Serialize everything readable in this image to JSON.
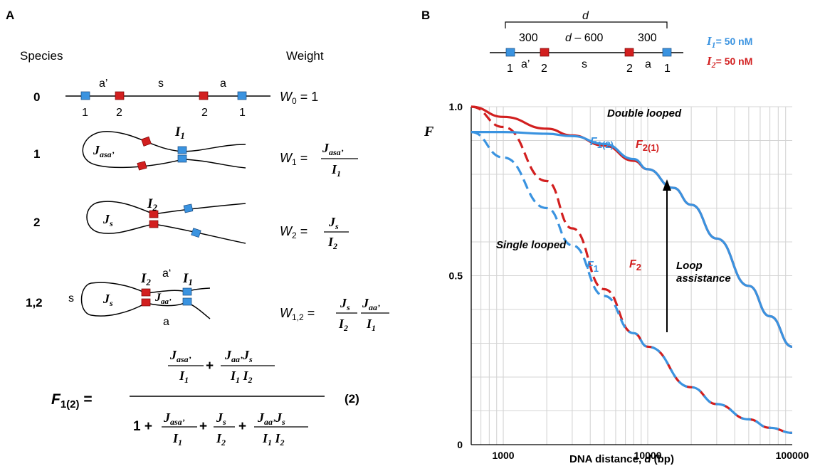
{
  "colors": {
    "blue": "#3a93e0",
    "red": "#d21f1f",
    "grid": "#d4d4d4",
    "black": "#000000"
  },
  "panelA": {
    "label": "A",
    "species_header": "Species",
    "weight_header": "Weight",
    "rows": [
      {
        "species": "0",
        "weight": "W0 = 1"
      },
      {
        "species": "1",
        "weight": "W1 = Jasa' / I1"
      },
      {
        "species": "2",
        "weight": "W2 = Js / I2"
      },
      {
        "species": "1,2",
        "weight": "W1,2 = Js/I2 · Jaa'/I1"
      }
    ],
    "segment_labels": {
      "a_prime": "a’",
      "s": "s",
      "a": "a",
      "a_prime_loop": "a‘",
      "a_lower": "a",
      "s_loop": "s"
    },
    "site_numbers": [
      "1",
      "2",
      "2",
      "1"
    ],
    "equation_number": "(2)"
  },
  "panelB": {
    "label": "B",
    "schematic": {
      "d_label": "d",
      "left_gap": "300",
      "middle": "d – 600",
      "right_gap": "300",
      "site_numbers": [
        "1",
        "2",
        "2",
        "1"
      ],
      "segment_labels": [
        "a’",
        "s",
        "a"
      ]
    },
    "legend": [
      {
        "name": "I1",
        "value": "= 50 nM",
        "color": "#3a93e0"
      },
      {
        "name": "I2",
        "value": "= 50 nM",
        "color": "#d21f1f"
      }
    ],
    "annotations": {
      "double": "Double looped",
      "single": "Single looped",
      "loop1": "Loop",
      "loop2": "assistance"
    },
    "curve_labels": {
      "F12": "F1(2)",
      "F21": "F2(1)",
      "F1": "F1",
      "F2": "F2"
    }
  },
  "chart_data": {
    "type": "line",
    "title": "",
    "xlabel": "DNA distance, d (bp)",
    "ylabel": "F",
    "x_scale": "log",
    "xlim": [
      600,
      100000
    ],
    "ylim": [
      0,
      1.0
    ],
    "x_ticks": [
      "1000",
      "10000",
      "100000"
    ],
    "y_ticks": [
      "0",
      "0.5",
      "1.0"
    ],
    "grid": true,
    "series": [
      {
        "name": "F2(1)",
        "color": "#d21f1f",
        "style": "solid",
        "x": [
          600,
          1000,
          2000,
          3000,
          5000,
          8000,
          10000,
          15000,
          20000,
          30000,
          50000,
          70000,
          100000
        ],
        "y": [
          1.0,
          0.97,
          0.935,
          0.915,
          0.885,
          0.84,
          0.815,
          0.76,
          0.71,
          0.61,
          0.47,
          0.38,
          0.29
        ]
      },
      {
        "name": "F1(2)",
        "color": "#3a93e0",
        "style": "solid",
        "x": [
          600,
          1000,
          2000,
          3000,
          5000,
          8000,
          10000,
          15000,
          20000,
          30000,
          50000,
          70000,
          100000
        ],
        "y": [
          0.925,
          0.925,
          0.92,
          0.913,
          0.89,
          0.845,
          0.815,
          0.76,
          0.71,
          0.61,
          0.47,
          0.38,
          0.29
        ]
      },
      {
        "name": "F2",
        "color": "#d21f1f",
        "style": "dashed",
        "x": [
          600,
          1000,
          2000,
          3000,
          5000,
          8000,
          10000,
          20000,
          30000,
          50000,
          70000,
          100000
        ],
        "y": [
          1.0,
          0.94,
          0.78,
          0.64,
          0.46,
          0.33,
          0.29,
          0.17,
          0.12,
          0.075,
          0.05,
          0.035
        ]
      },
      {
        "name": "F1",
        "color": "#3a93e0",
        "style": "dashed",
        "x": [
          600,
          1000,
          2000,
          3000,
          5000,
          8000,
          10000,
          20000,
          30000,
          50000,
          70000,
          100000
        ],
        "y": [
          0.925,
          0.85,
          0.7,
          0.59,
          0.44,
          0.33,
          0.29,
          0.17,
          0.12,
          0.075,
          0.05,
          0.035
        ]
      }
    ]
  }
}
